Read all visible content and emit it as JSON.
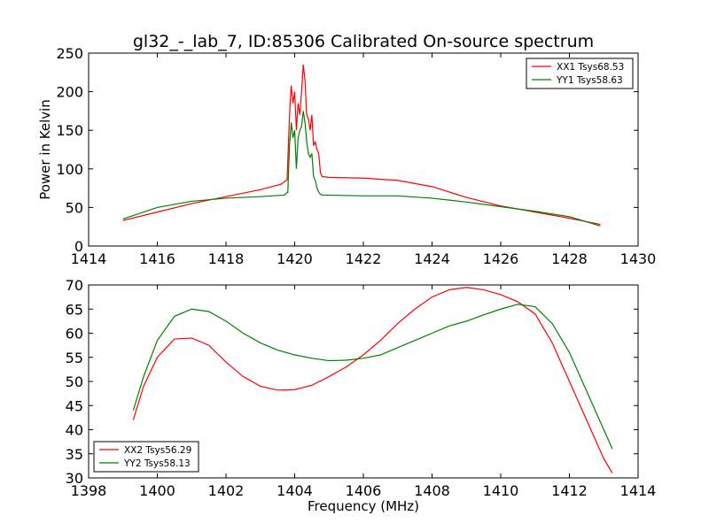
{
  "chart_data": [
    {
      "type": "line",
      "title": "gl32_-_lab_7, ID:85306 Calibrated On-source spectrum",
      "xlabel": "",
      "ylabel": "Power in Kelvin",
      "xlim": [
        1414,
        1430
      ],
      "ylim": [
        0,
        250
      ],
      "xticks": [
        1414,
        1416,
        1418,
        1420,
        1422,
        1424,
        1426,
        1428,
        1430
      ],
      "yticks": [
        0,
        50,
        100,
        150,
        200,
        250
      ],
      "legend_position": "top-right",
      "grid": false,
      "series": [
        {
          "name": "XX1 Tsys68.53",
          "color": "#ff0000",
          "x": [
            1415.0,
            1416.0,
            1417.0,
            1418.0,
            1419.0,
            1419.6,
            1419.78,
            1419.85,
            1419.9,
            1419.95,
            1420.0,
            1420.05,
            1420.1,
            1420.15,
            1420.2,
            1420.25,
            1420.3,
            1420.35,
            1420.4,
            1420.45,
            1420.5,
            1420.55,
            1420.6,
            1420.65,
            1420.7,
            1420.75,
            1420.8,
            1421.0,
            1422.0,
            1423.0,
            1424.0,
            1425.0,
            1426.0,
            1427.0,
            1428.0,
            1428.9
          ],
          "y": [
            33,
            44,
            55,
            64,
            73,
            80,
            86,
            170,
            208,
            185,
            200,
            150,
            185,
            170,
            200,
            235,
            215,
            170,
            165,
            150,
            170,
            130,
            135,
            125,
            120,
            95,
            90,
            89,
            88,
            85,
            77,
            63,
            52,
            44,
            36,
            28
          ]
        },
        {
          "name": "YY1 Tsys58.63",
          "color": "#008000",
          "x": [
            1415.0,
            1416.0,
            1417.0,
            1418.0,
            1419.0,
            1419.7,
            1419.8,
            1419.85,
            1419.9,
            1419.95,
            1420.0,
            1420.05,
            1420.1,
            1420.15,
            1420.2,
            1420.25,
            1420.3,
            1420.35,
            1420.4,
            1420.45,
            1420.5,
            1420.55,
            1420.6,
            1420.65,
            1420.7,
            1420.75,
            1420.8,
            1421.0,
            1422.0,
            1423.0,
            1424.0,
            1425.0,
            1426.0,
            1427.0,
            1428.0,
            1428.9
          ],
          "y": [
            35,
            50,
            58,
            62,
            64,
            66,
            70,
            130,
            160,
            140,
            150,
            100,
            140,
            150,
            155,
            175,
            160,
            135,
            120,
            115,
            120,
            90,
            85,
            75,
            70,
            67,
            66,
            66,
            65,
            65,
            62,
            57,
            51,
            45,
            38,
            26
          ]
        }
      ]
    },
    {
      "type": "line",
      "title": "",
      "xlabel": "Frequency (MHz)",
      "ylabel": "",
      "xlim": [
        1398,
        1414
      ],
      "ylim": [
        30,
        70
      ],
      "xticks": [
        1398,
        1400,
        1402,
        1404,
        1406,
        1408,
        1410,
        1412,
        1414
      ],
      "yticks": [
        30,
        35,
        40,
        45,
        50,
        55,
        60,
        65,
        70
      ],
      "legend_position": "lower-left",
      "grid": false,
      "series": [
        {
          "name": "XX2 Tsys56.29",
          "color": "#ff0000",
          "x": [
            1399.3,
            1399.6,
            1400.0,
            1400.5,
            1401.0,
            1401.5,
            1402.0,
            1402.5,
            1403.0,
            1403.5,
            1404.0,
            1404.5,
            1405.0,
            1405.5,
            1406.0,
            1406.5,
            1407.0,
            1407.5,
            1408.0,
            1408.5,
            1409.0,
            1409.5,
            1410.0,
            1410.5,
            1411.0,
            1411.5,
            1412.0,
            1412.5,
            1413.0,
            1413.25
          ],
          "y": [
            42,
            49,
            55,
            58.8,
            59,
            57.5,
            54,
            51,
            49,
            48.2,
            48.3,
            49.2,
            51,
            53,
            55.5,
            58.5,
            62,
            65,
            67.5,
            69,
            69.5,
            69,
            68,
            66.5,
            64,
            58,
            50,
            42,
            34,
            31
          ]
        },
        {
          "name": "YY2 Tsys58.13",
          "color": "#008000",
          "x": [
            1399.3,
            1399.6,
            1400.0,
            1400.5,
            1401.0,
            1401.5,
            1402.0,
            1402.5,
            1403.0,
            1403.5,
            1404.0,
            1404.5,
            1405.0,
            1405.5,
            1406.0,
            1406.5,
            1407.0,
            1407.5,
            1408.0,
            1408.5,
            1409.0,
            1409.5,
            1410.0,
            1410.5,
            1411.0,
            1411.5,
            1412.0,
            1412.5,
            1413.0,
            1413.25
          ],
          "y": [
            44,
            51,
            58.5,
            63.5,
            65,
            64.5,
            62.5,
            60,
            58,
            56.5,
            55.5,
            54.8,
            54.3,
            54.4,
            54.8,
            55.5,
            57,
            58.5,
            60,
            61.5,
            62.5,
            63.8,
            65,
            66,
            65.5,
            62,
            56,
            48,
            40,
            36
          ]
        }
      ]
    }
  ]
}
